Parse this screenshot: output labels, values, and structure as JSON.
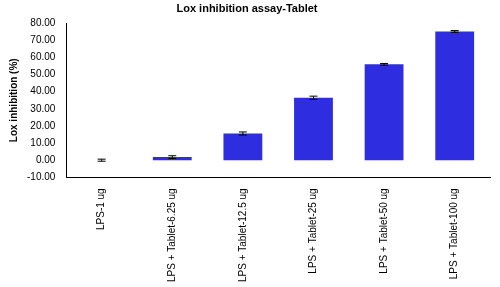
{
  "chart_data": {
    "type": "bar",
    "title": "Lox inhibition assay-Tablet",
    "y_label": "Lox inhibition (%)",
    "categories": [
      "LPS-1 ug",
      "LPS + Tablet-6.25 ug",
      "LPS + Tablet-12.5 ug",
      "LPS + Tablet-25 ug",
      "LPS + Tablet-50 ug",
      "LPS + Tablet-100 ug"
    ],
    "values": [
      0,
      1.8,
      15.6,
      36.5,
      56.0,
      75.2
    ],
    "errors": [
      0.6,
      0.8,
      0.9,
      0.9,
      0.5,
      0.5
    ],
    "color": "#2e2ee0",
    "ylim": [
      -10,
      80
    ],
    "yticks": [
      {
        "value": -10,
        "label": "-10.00"
      },
      {
        "value": 0,
        "label": "0.00"
      },
      {
        "value": 10,
        "label": "10.00"
      },
      {
        "value": 20,
        "label": "20.00"
      },
      {
        "value": 30,
        "label": "30.00"
      },
      {
        "value": 40,
        "label": "40.00"
      },
      {
        "value": 50,
        "label": "50.00"
      },
      {
        "value": 60,
        "label": "60.00"
      },
      {
        "value": 70,
        "label": "70.00"
      },
      {
        "value": 80,
        "label": "80.00"
      }
    ],
    "grid": false
  }
}
